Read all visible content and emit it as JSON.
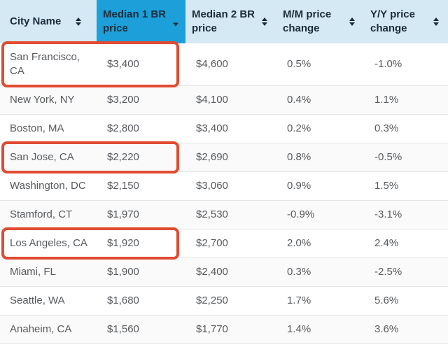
{
  "table": {
    "columns": [
      {
        "label": "City Name",
        "sort_state": "unsorted"
      },
      {
        "label": "Median 1 BR price",
        "sort_state": "sorted-descending",
        "active": true
      },
      {
        "label": "Median 2 BR price",
        "sort_state": "unsorted"
      },
      {
        "label": "M/M price change",
        "sort_state": "unsorted"
      },
      {
        "label": "Y/Y price change",
        "sort_state": "unsorted"
      }
    ],
    "rows": [
      {
        "city": "San Francisco, CA",
        "br1": "$3,400",
        "br2": "$4,600",
        "mm": "0.5%",
        "yy": "-1.0%",
        "highlighted": true
      },
      {
        "city": "New York, NY",
        "br1": "$3,200",
        "br2": "$4,100",
        "mm": "0.4%",
        "yy": "1.1%",
        "highlighted": false
      },
      {
        "city": "Boston, MA",
        "br1": "$2,800",
        "br2": "$3,400",
        "mm": "0.2%",
        "yy": "0.3%",
        "highlighted": false
      },
      {
        "city": "San Jose, CA",
        "br1": "$2,220",
        "br2": "$2,690",
        "mm": "0.8%",
        "yy": "-0.5%",
        "highlighted": true
      },
      {
        "city": "Washington, DC",
        "br1": "$2,150",
        "br2": "$3,060",
        "mm": "0.9%",
        "yy": "1.5%",
        "highlighted": false
      },
      {
        "city": "Stamford, CT",
        "br1": "$1,970",
        "br2": "$2,530",
        "mm": "-0.9%",
        "yy": "-3.1%",
        "highlighted": false
      },
      {
        "city": "Los Angeles, CA",
        "br1": "$1,920",
        "br2": "$2,700",
        "mm": "2.0%",
        "yy": "2.4%",
        "highlighted": true
      },
      {
        "city": "Miami, FL",
        "br1": "$1,900",
        "br2": "$2,400",
        "mm": "0.3%",
        "yy": "-2.5%",
        "highlighted": false
      },
      {
        "city": "Seattle, WA",
        "br1": "$1,680",
        "br2": "$2,250",
        "mm": "1.7%",
        "yy": "5.6%",
        "highlighted": false
      },
      {
        "city": "Anaheim, CA",
        "br1": "$1,560",
        "br2": "$1,770",
        "mm": "1.4%",
        "yy": "3.6%",
        "highlighted": false
      }
    ]
  },
  "highlights": [
    "San Francisco, CA",
    "San Jose, CA",
    "Los Angeles, CA"
  ],
  "colors": {
    "header_bg": "#d5e9f5",
    "active_column_bg": "#1d9fd9",
    "header_text": "#1c2b39",
    "body_text": "#56595d",
    "row_divider": "#e4e4e4",
    "highlight_red": "#e14b32"
  },
  "icons": {
    "unsorted": "sort-updown-icon",
    "sorted_descending": "sort-down-icon"
  }
}
